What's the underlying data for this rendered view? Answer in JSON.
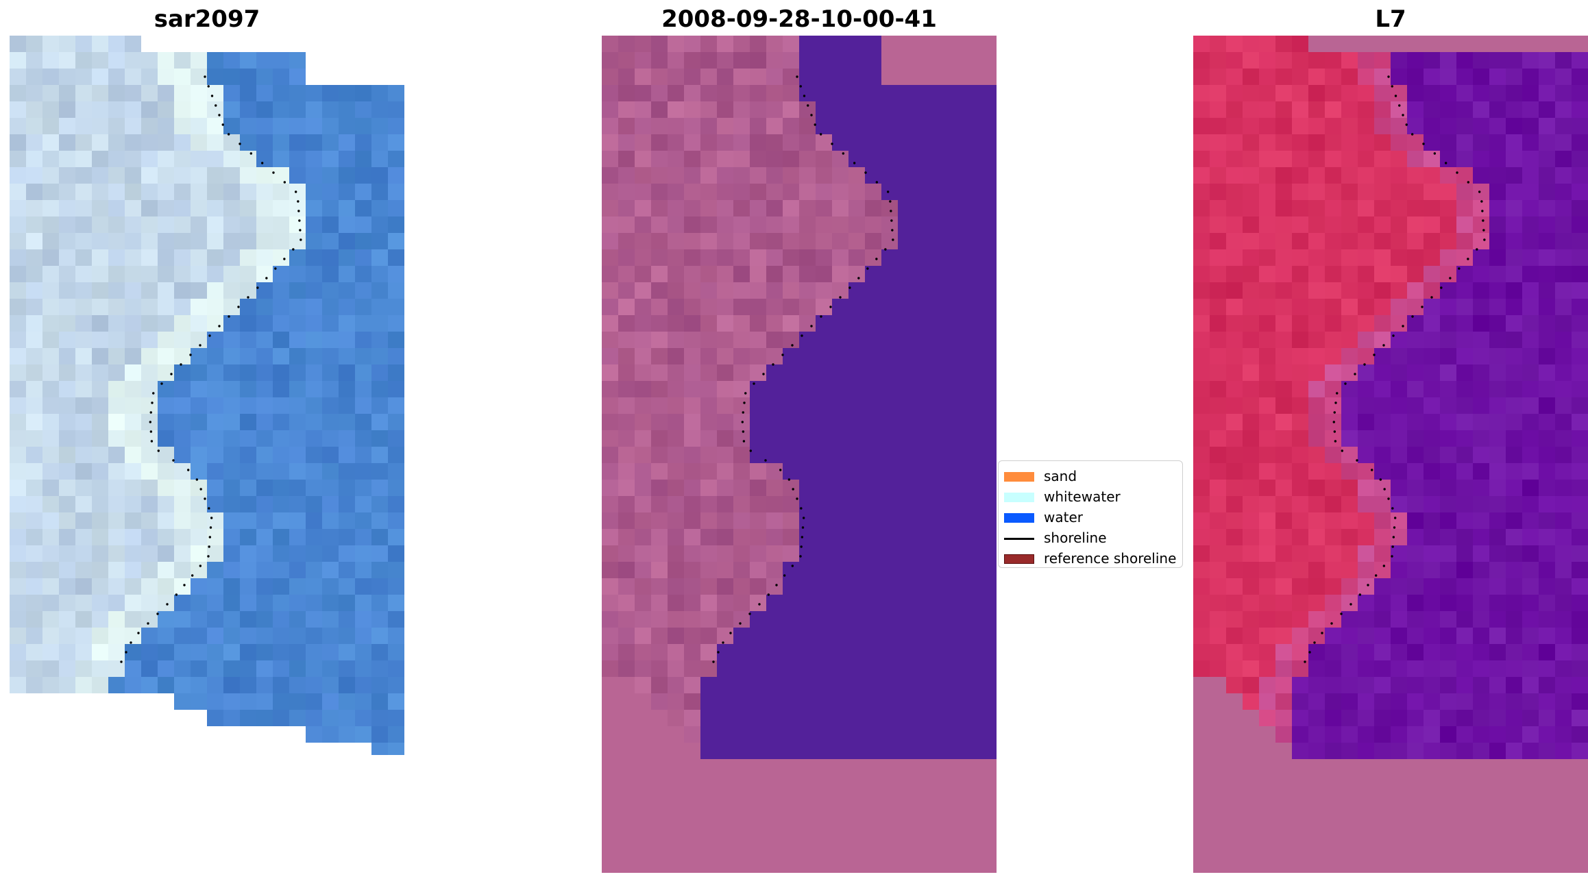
{
  "panels": [
    {
      "title": "sar2097"
    },
    {
      "title": "2008-09-28-10-00-41"
    },
    {
      "title": "L7"
    }
  ],
  "legend": {
    "items": [
      {
        "label": "sand",
        "kind": "patch",
        "color": "#ff8c3c"
      },
      {
        "label": "whitewater",
        "kind": "patch",
        "color": "#c8ffff"
      },
      {
        "label": "water",
        "kind": "patch",
        "color": "#0a5aff"
      },
      {
        "label": "shoreline",
        "kind": "line",
        "color": "#000000"
      },
      {
        "label": "reference shoreline",
        "kind": "patch",
        "color": "#992a2a"
      }
    ]
  },
  "colors": {
    "sand_rgb": "#b8cde6",
    "water_rgb": "#4a8ad2",
    "whitewater_rgb": "#e6f8f4",
    "land_class": "#b96594",
    "water_class": "#53219a",
    "land_index": "#d42c5e",
    "water_index": "#6a0aa2"
  }
}
